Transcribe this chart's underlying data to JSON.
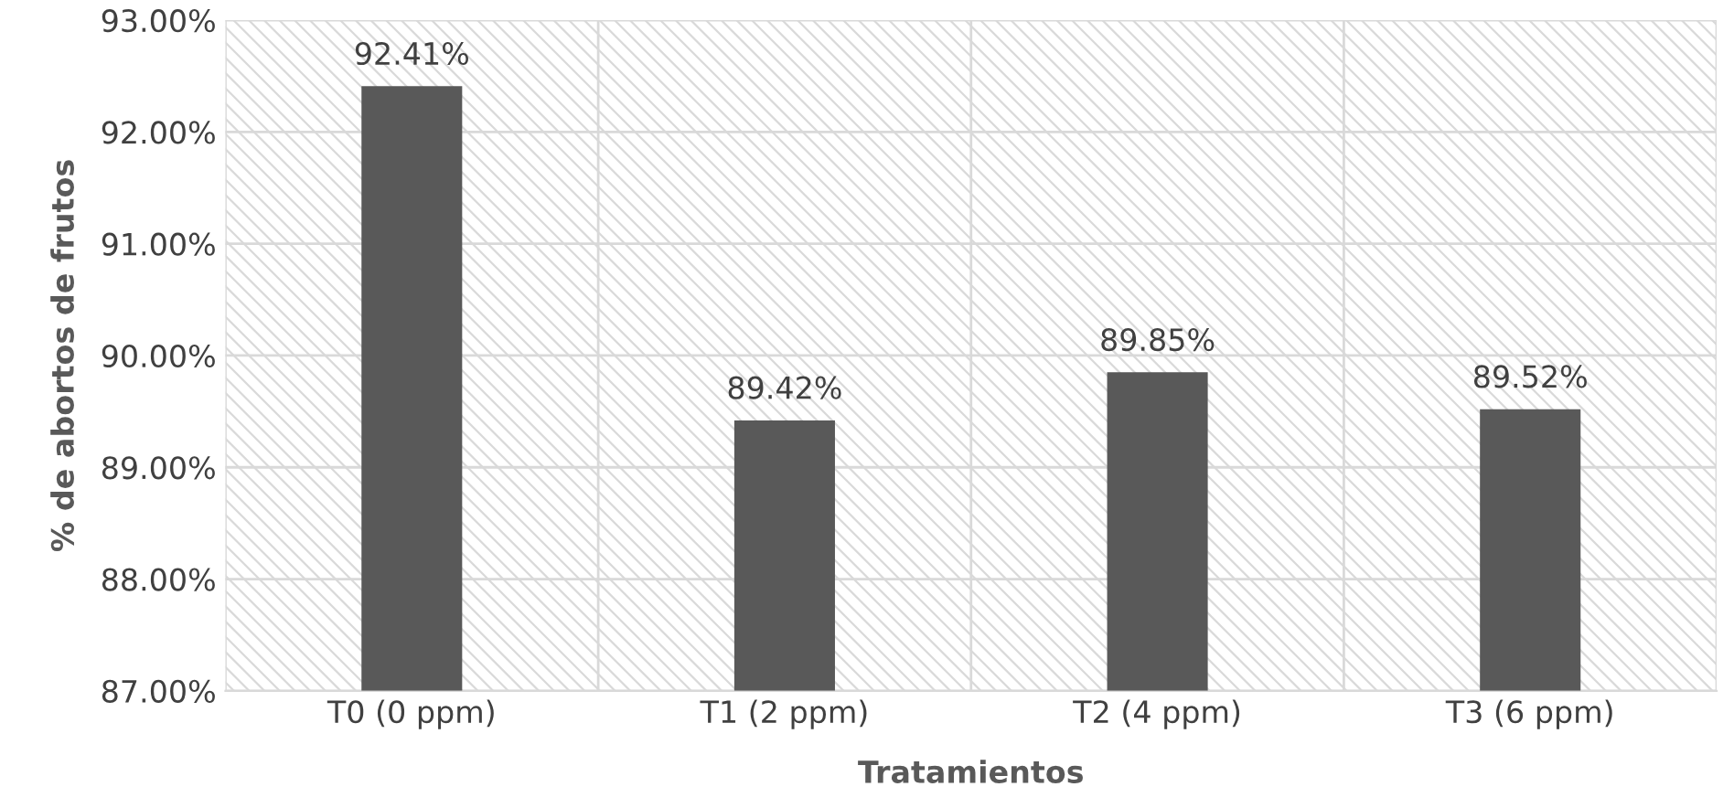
{
  "chart_data": {
    "type": "bar",
    "xlabel": "Tratamientos",
    "ylabel": "% de abortos de frutos",
    "categories": [
      "T0 (0 ppm)",
      "T1 (2 ppm)",
      "T2 (4 ppm)",
      "T3 (6 ppm)"
    ],
    "values": [
      92.41,
      89.42,
      89.85,
      89.52
    ],
    "value_labels": [
      "92.41%",
      "89.42%",
      "89.85%",
      "89.52%"
    ],
    "color": "#595959",
    "ylim": [
      87,
      93
    ],
    "yticks": [
      {
        "value": 87,
        "label": "87.00%"
      },
      {
        "value": 88,
        "label": "88.00%"
      },
      {
        "value": 89,
        "label": "89.00%"
      },
      {
        "value": 90,
        "label": "90.00%"
      },
      {
        "value": 91,
        "label": "91.00%"
      },
      {
        "value": 92,
        "label": "92.00%"
      },
      {
        "value": 93,
        "label": "93.00%"
      }
    ],
    "grid": true,
    "legend": false
  }
}
